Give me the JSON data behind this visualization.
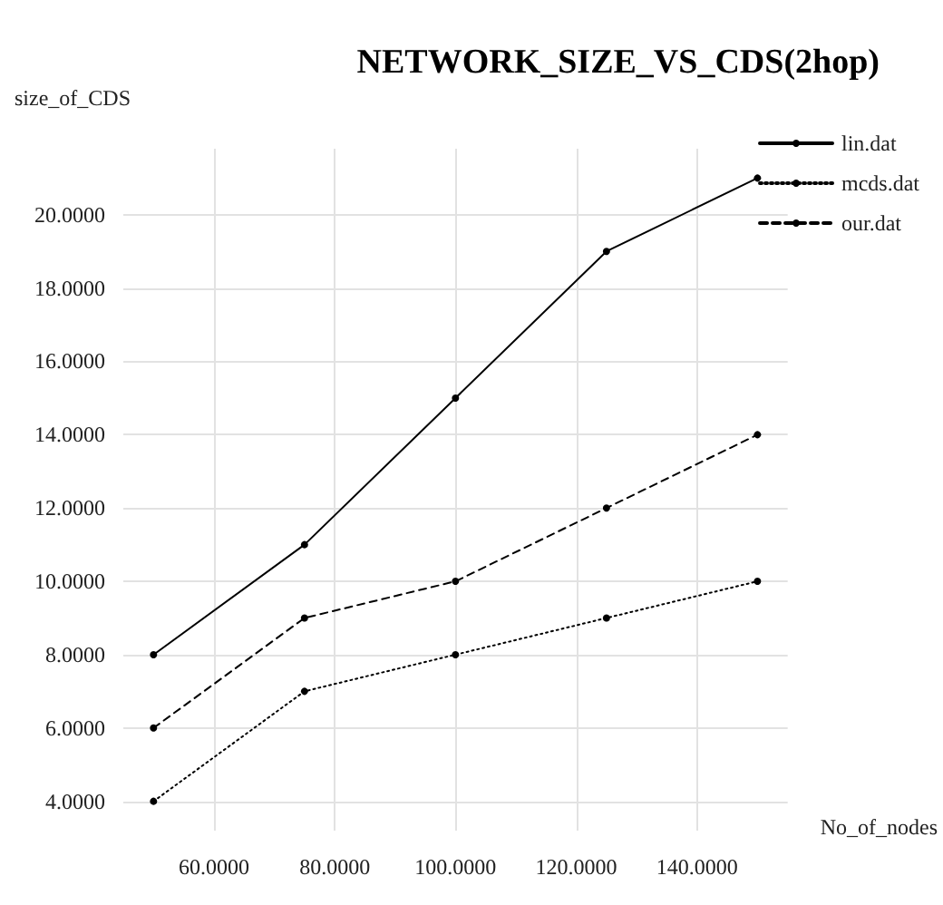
{
  "chart_data": {
    "type": "line",
    "title": "NETWORK_SIZE_VS_CDS(2hop)",
    "xlabel": "No_of_nodes",
    "ylabel": "size_of_CDS",
    "x": [
      50,
      75,
      100,
      125,
      150
    ],
    "series": [
      {
        "name": "lin.dat",
        "color": "#000000",
        "line_style": "solid",
        "values": [
          8,
          11,
          15,
          19,
          21
        ]
      },
      {
        "name": "mcds.dat",
        "color": "#000000",
        "line_style": "dotted",
        "values": [
          4,
          7,
          8,
          9,
          10
        ]
      },
      {
        "name": "our.dat",
        "color": "#000000",
        "line_style": "dashed",
        "values": [
          6,
          9,
          10,
          12,
          14
        ]
      }
    ],
    "xlim": [
      45,
      155
    ],
    "ylim": [
      3.2,
      21.8
    ],
    "xticks": [
      {
        "value": 60,
        "label": "60.0000"
      },
      {
        "value": 80,
        "label": "80.0000"
      },
      {
        "value": 100,
        "label": "100.0000"
      },
      {
        "value": 120,
        "label": "120.0000"
      },
      {
        "value": 140,
        "label": "140.0000"
      }
    ],
    "yticks": [
      {
        "value": 4,
        "label": "4.0000"
      },
      {
        "value": 6,
        "label": "6.0000"
      },
      {
        "value": 8,
        "label": "8.0000"
      },
      {
        "value": 10,
        "label": "10.0000"
      },
      {
        "value": 12,
        "label": "12.0000"
      },
      {
        "value": 14,
        "label": "14.0000"
      },
      {
        "value": 16,
        "label": "16.0000"
      },
      {
        "value": 18,
        "label": "18.0000"
      },
      {
        "value": 20,
        "label": "20.0000"
      }
    ],
    "grid": true,
    "legend": "top right",
    "marker": "circle"
  }
}
